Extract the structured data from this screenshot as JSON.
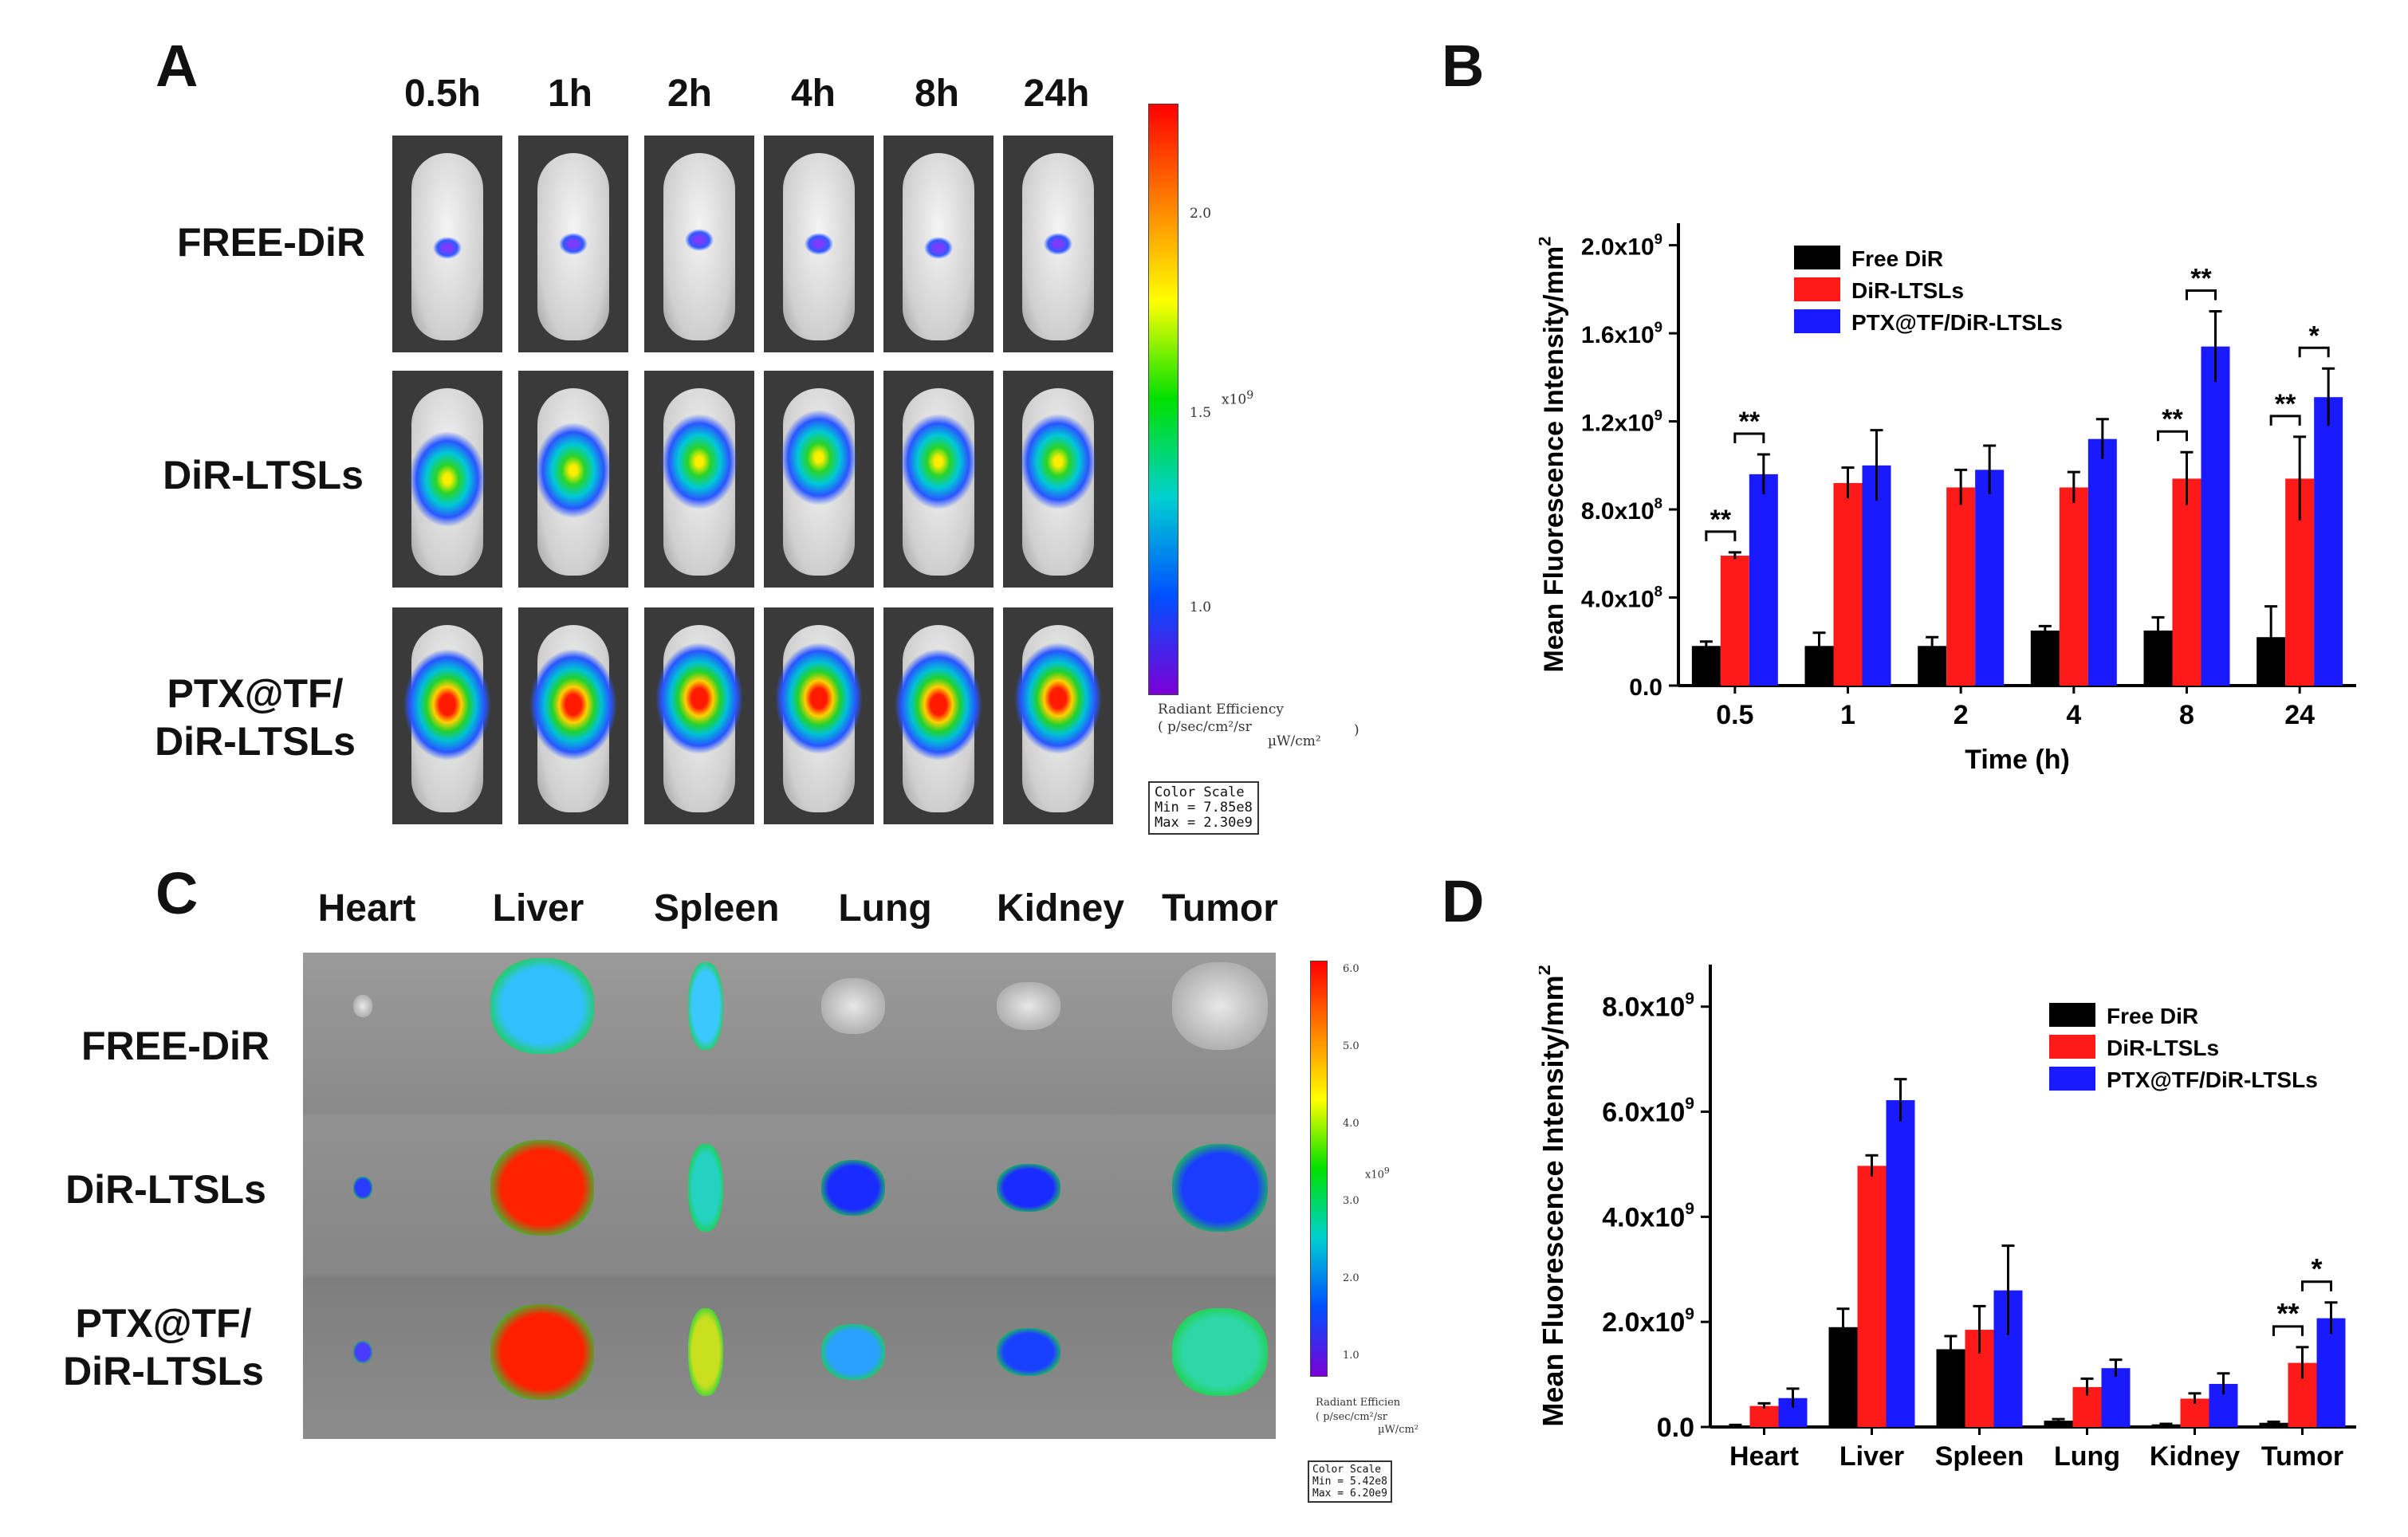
{
  "panels": {
    "a": "A",
    "b": "B",
    "c": "C",
    "d": "D"
  },
  "colors": {
    "free": "#000000",
    "ltsl": "#ff1a1a",
    "ptx": "#1a1aff",
    "bg_organ": "#8c8c8c"
  },
  "panel_a": {
    "times": [
      "0.5h",
      "1h",
      "2h",
      "4h",
      "8h",
      "24h"
    ],
    "rows": [
      {
        "lines": [
          "FREE-DiR"
        ]
      },
      {
        "lines": [
          "DiR-LTSLs"
        ]
      },
      {
        "lines": [
          "PTX@TF/",
          "DiR-LTSLs"
        ]
      }
    ],
    "colorbar": {
      "ticks": [
        "2.0",
        "1.5",
        "1.0"
      ],
      "unit": "x10",
      "unit_exp": "9",
      "title": "Radiant Efficiency",
      "units_line": "( p/sec/cm²/sr",
      "units_line2": "µW/cm²",
      "units_close": ")",
      "box_title": "Color Scale",
      "box_min": "Min = 7.85e8",
      "box_max": "Max = 2.30e9"
    }
  },
  "panel_c": {
    "organs": [
      "Heart",
      "Liver",
      "Spleen",
      "Lung",
      "Kidney",
      "Tumor"
    ],
    "rows": [
      {
        "lines": [
          "FREE-DiR"
        ]
      },
      {
        "lines": [
          "DiR-LTSLs"
        ]
      },
      {
        "lines": [
          "PTX@TF/",
          "DiR-LTSLs"
        ]
      }
    ],
    "colorbar": {
      "ticks": [
        "6.0",
        "5.0",
        "4.0",
        "3.0",
        "2.0",
        "1.0"
      ],
      "unit": "x10",
      "unit_exp": "9",
      "title": "Radiant Efficien",
      "units_line": "( p/sec/cm²/sr",
      "units_line2": "µW/cm²",
      "box_title": "Color Scale",
      "box_min": "Min = 5.42e8",
      "box_max": "Max = 6.20e9"
    }
  },
  "chart_data": [
    {
      "id": "B",
      "type": "bar",
      "title": "",
      "xlabel": "Time (h)",
      "ylabel": "Mean Fluorescence Intensity/mm",
      "ylabel_sup": "2",
      "categories": [
        "0.5",
        "1",
        "2",
        "4",
        "8",
        "24"
      ],
      "ylim": [
        0,
        2100000000.0
      ],
      "yticks": [
        {
          "value": 0,
          "mantissa": "0.0",
          "exp": ""
        },
        {
          "value": 400000000.0,
          "mantissa": "4.0x10",
          "exp": "8"
        },
        {
          "value": 800000000.0,
          "mantissa": "8.0x10",
          "exp": "8"
        },
        {
          "value": 1200000000.0,
          "mantissa": "1.2x10",
          "exp": "9"
        },
        {
          "value": 1600000000.0,
          "mantissa": "1.6x10",
          "exp": "9"
        },
        {
          "value": 2000000000.0,
          "mantissa": "2.0x10",
          "exp": "9"
        }
      ],
      "series": [
        {
          "name": "Free DiR",
          "color": "#000000",
          "values": [
            180000000.0,
            180000000.0,
            180000000.0,
            250000000.0,
            250000000.0,
            220000000.0
          ],
          "errors": [
            20000000.0,
            60000000.0,
            40000000.0,
            20000000.0,
            60000000.0,
            140000000.0
          ]
        },
        {
          "name": "DiR-LTSLs",
          "color": "#ff1a1a",
          "values": [
            590000000.0,
            920000000.0,
            900000000.0,
            900000000.0,
            940000000.0,
            940000000.0
          ],
          "errors": [
            15000000.0,
            70000000.0,
            80000000.0,
            70000000.0,
            120000000.0,
            190000000.0
          ]
        },
        {
          "name": "PTX@TF/DiR-LTSLs",
          "color": "#1a1aff",
          "values": [
            960000000.0,
            1000000000.0,
            980000000.0,
            1120000000.0,
            1540000000.0,
            1310000000.0
          ],
          "errors": [
            90000000.0,
            160000000.0,
            110000000.0,
            90000000.0,
            160000000.0,
            130000000.0
          ]
        }
      ],
      "legend_position": "top-left",
      "annotations": [
        {
          "category": 0,
          "pair": [
            0,
            1
          ],
          "label": "**"
        },
        {
          "category": 0,
          "pair": [
            1,
            2
          ],
          "label": "**"
        },
        {
          "category": 4,
          "pair": [
            0,
            1
          ],
          "label": "**"
        },
        {
          "category": 4,
          "pair": [
            1,
            2
          ],
          "label": "**"
        },
        {
          "category": 5,
          "pair": [
            0,
            1
          ],
          "label": "**"
        },
        {
          "category": 5,
          "pair": [
            1,
            2
          ],
          "label": "*"
        }
      ]
    },
    {
      "id": "D",
      "type": "bar",
      "title": "",
      "xlabel": "",
      "ylabel": "Mean Fluorescence Intensity/mm",
      "ylabel_sup": "2",
      "categories": [
        "Heart",
        "Liver",
        "Spleen",
        "Lung",
        "Kidney",
        "Tumor"
      ],
      "ylim": [
        0,
        8800000000.0
      ],
      "yticks": [
        {
          "value": 0,
          "mantissa": "0.0",
          "exp": ""
        },
        {
          "value": 2000000000.0,
          "mantissa": "2.0x10",
          "exp": "9"
        },
        {
          "value": 4000000000.0,
          "mantissa": "4.0x10",
          "exp": "9"
        },
        {
          "value": 6000000000.0,
          "mantissa": "6.0x10",
          "exp": "9"
        },
        {
          "value": 8000000000.0,
          "mantissa": "8.0x10",
          "exp": "9"
        }
      ],
      "series": [
        {
          "name": "Free DiR",
          "color": "#000000",
          "values": [
            30000000.0,
            1900000000.0,
            1480000000.0,
            120000000.0,
            50000000.0,
            80000000.0
          ],
          "errors": [
            10000000.0,
            350000000.0,
            250000000.0,
            30000000.0,
            10000000.0,
            20000000.0
          ]
        },
        {
          "name": "DiR-LTSLs",
          "color": "#ff1a1a",
          "values": [
            400000000.0,
            4970000000.0,
            1850000000.0,
            760000000.0,
            540000000.0,
            1220000000.0
          ],
          "errors": [
            50000000.0,
            200000000.0,
            450000000.0,
            160000000.0,
            100000000.0,
            300000000.0
          ]
        },
        {
          "name": "PTX@TF/DiR-LTSLs",
          "color": "#1a1aff",
          "values": [
            550000000.0,
            6220000000.0,
            2600000000.0,
            1120000000.0,
            820000000.0,
            2070000000.0
          ],
          "errors": [
            180000000.0,
            400000000.0,
            850000000.0,
            160000000.0,
            200000000.0,
            300000000.0
          ]
        }
      ],
      "legend_position": "top-right",
      "annotations": [
        {
          "category": 5,
          "pair": [
            0,
            1
          ],
          "label": "**"
        },
        {
          "category": 5,
          "pair": [
            1,
            2
          ],
          "label": "*"
        }
      ]
    }
  ]
}
